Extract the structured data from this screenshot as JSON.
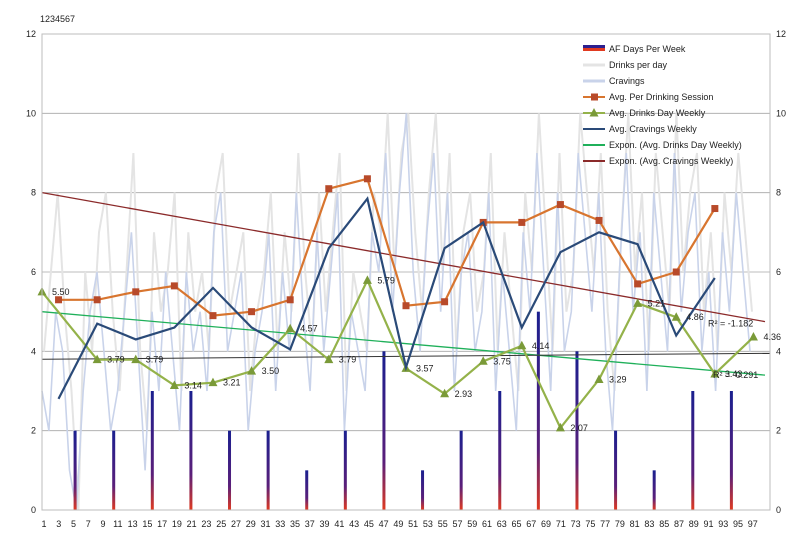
{
  "corner_label": "1234567",
  "chart_data": {
    "type": "line",
    "title": "",
    "xlabel": "",
    "ylabel": "",
    "ylim": [
      0,
      12
    ],
    "yticks": [
      "0",
      "2",
      "4",
      "6",
      "8",
      "10",
      "12"
    ],
    "xtick_labels": [
      "1",
      "3",
      "5",
      "7",
      "9",
      "11",
      "13",
      "15",
      "17",
      "19",
      "21",
      "23",
      "25",
      "27",
      "29",
      "31",
      "33",
      "35",
      "37",
      "39",
      "41",
      "43",
      "45",
      "47",
      "49",
      "51",
      "53",
      "55",
      "57",
      "59",
      "61",
      "63",
      "65",
      "67",
      "69",
      "71",
      "73",
      "75",
      "77",
      "79",
      "81",
      "83",
      "85",
      "87",
      "89",
      "91",
      "93",
      "95",
      "97"
    ],
    "x_count": 104,
    "grid": true,
    "legend_position": "top-right",
    "legend": [
      {
        "name": "AF Days Per Week",
        "kind": "bar",
        "color": "#2c1f8f"
      },
      {
        "name": "Drinks per day",
        "kind": "line",
        "color": "#e4e4e4"
      },
      {
        "name": "Cravings",
        "kind": "line",
        "color": "#c9d3ea"
      },
      {
        "name": "Avg. Per Drinking Session",
        "kind": "line-square",
        "color": "#d8752f"
      },
      {
        "name": "Avg. Drinks Day Weekly",
        "kind": "line-triangle",
        "color": "#94b24a"
      },
      {
        "name": "Avg. Cravings Weekly",
        "kind": "line",
        "color": "#2a4a78"
      },
      {
        "name": "Expon. (Avg. Drinks Day Weekly)",
        "kind": "line",
        "color": "#1fb05a"
      },
      {
        "name": "Expon. (Avg. Cravings Weekly)",
        "kind": "line",
        "color": "#8b2a2a"
      }
    ],
    "af_days_per_week": {
      "x": [
        7,
        14,
        21,
        28,
        35,
        42,
        49,
        56,
        63,
        70,
        77,
        84,
        91,
        98,
        105,
        112,
        119,
        126
      ],
      "values": [
        2,
        2,
        3,
        3,
        2,
        2,
        1,
        2,
        4,
        1,
        2,
        3,
        5,
        4,
        2,
        1,
        3,
        3
      ]
    },
    "drinks_per_day": [
      4,
      6,
      8,
      5,
      3,
      0,
      6,
      4,
      7,
      8,
      5,
      3,
      6,
      9,
      4,
      2,
      7,
      5,
      6,
      8,
      3,
      7,
      5,
      6,
      4,
      8,
      9,
      5,
      6,
      7,
      3,
      5,
      6,
      8,
      4,
      7,
      5,
      9,
      6,
      4,
      8,
      5,
      7,
      9,
      3,
      6,
      5,
      4,
      8,
      7,
      10,
      6,
      9,
      10,
      7,
      5,
      8,
      10,
      6,
      9,
      4,
      7,
      8,
      5,
      6,
      9,
      4,
      7,
      5,
      3,
      8,
      6,
      10,
      7,
      4,
      9,
      5,
      6,
      10,
      8,
      6,
      9,
      5,
      3,
      7,
      10,
      6,
      8,
      4,
      9,
      7,
      5,
      10,
      6,
      8,
      9,
      5,
      7,
      4,
      8,
      6,
      9,
      7,
      5
    ],
    "cravings": [
      3,
      2,
      5,
      4,
      1,
      0,
      3,
      5,
      6,
      4,
      2,
      3,
      5,
      7,
      4,
      1,
      5,
      3,
      6,
      4,
      2,
      6,
      4,
      5,
      3,
      7,
      8,
      4,
      5,
      6,
      2,
      4,
      5,
      7,
      3,
      6,
      4,
      8,
      5,
      3,
      7,
      4,
      6,
      8,
      2,
      5,
      4,
      3,
      7,
      6,
      9,
      5,
      8,
      10,
      6,
      4,
      7,
      9,
      5,
      8,
      3,
      6,
      7,
      4,
      5,
      8,
      3,
      6,
      4,
      2,
      7,
      5,
      9,
      6,
      3,
      8,
      4,
      5,
      9,
      7,
      5,
      8,
      4,
      2,
      6,
      9,
      5,
      7,
      3,
      8,
      6,
      4,
      9,
      5,
      7,
      8,
      4,
      6,
      3,
      7,
      5,
      8,
      6,
      4
    ],
    "series": [
      {
        "name": "Avg. Per Drinking Session",
        "x": [
          4,
          11,
          18,
          25,
          32,
          39,
          46,
          53,
          60,
          67,
          74,
          81,
          88,
          95,
          102,
          109,
          116,
          123
        ],
        "values": [
          5.3,
          5.3,
          5.5,
          5.65,
          4.9,
          5.0,
          5.3,
          8.1,
          8.35,
          5.15,
          5.25,
          7.25,
          7.25,
          7.7,
          7.3,
          5.7,
          6.0,
          7.6
        ]
      },
      {
        "name": "Avg. Drinks Day Weekly",
        "x": [
          1,
          11,
          18,
          25,
          32,
          39,
          46,
          53,
          60,
          67,
          74,
          81,
          88,
          95,
          102,
          109,
          116,
          123,
          130
        ],
        "values": [
          5.5,
          3.79,
          3.79,
          3.14,
          3.21,
          3.5,
          4.57,
          3.79,
          5.79,
          3.57,
          2.93,
          3.75,
          4.14,
          2.07,
          3.29,
          5.21,
          4.86,
          3.43,
          4.36
        ],
        "labels": [
          "5.50",
          "3.79",
          "3.79",
          "3.14",
          "3.21",
          "3.50",
          "4.57",
          "3.79",
          "5.79",
          "3.57",
          "2.93",
          "3.75",
          "4.14",
          "2.07",
          "3.29",
          "5.21",
          "4.86",
          "3.43",
          "4.36"
        ]
      },
      {
        "name": "Avg. Cravings Weekly",
        "x": [
          4,
          11,
          18,
          25,
          32,
          39,
          46,
          53,
          60,
          67,
          74,
          81,
          88,
          95,
          102,
          109,
          116,
          123
        ],
        "values": [
          2.8,
          4.7,
          4.3,
          4.6,
          5.6,
          4.6,
          4.05,
          6.6,
          7.85,
          3.6,
          6.6,
          7.25,
          4.6,
          6.5,
          7.0,
          6.7,
          4.4,
          5.85
        ]
      }
    ],
    "trendlines": [
      {
        "name": "Expon. (Avg. Drinks Day Weekly)",
        "start": 5.0,
        "end": 3.4,
        "r2_label": "R² = -0.291"
      },
      {
        "name": "Expon. (Avg. Cravings Weekly)",
        "start": 8.0,
        "end": 4.75,
        "r2_label": "R² = -1.182"
      }
    ],
    "reference_line": {
      "start": 3.8,
      "end": 3.95
    }
  }
}
